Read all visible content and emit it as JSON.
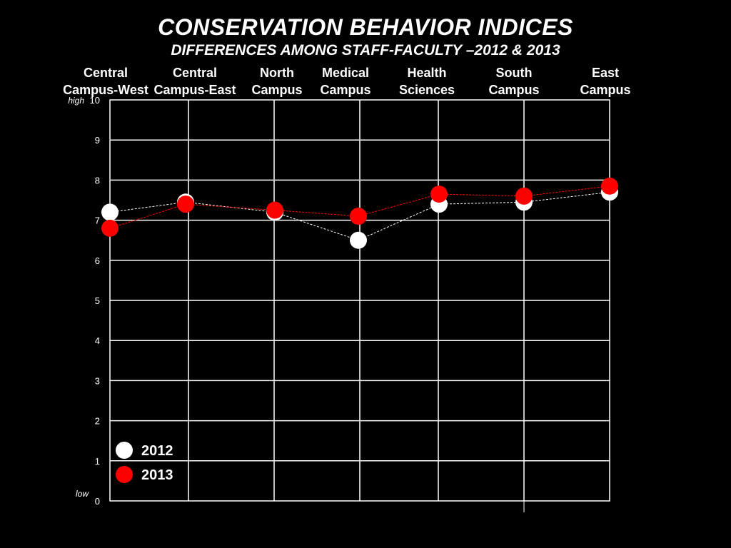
{
  "chart_data": {
    "type": "line",
    "title": "CONSERVATION BEHAVIOR INDICES",
    "subtitle": "DIFFERENCES AMONG STAFF-FACULTY –2012 & 2013",
    "categories": [
      [
        "Central",
        "Campus-West"
      ],
      [
        "Central",
        "Campus-East"
      ],
      [
        "North",
        "Campus"
      ],
      [
        "Medical",
        "Campus"
      ],
      [
        "Health",
        "Sciences"
      ],
      [
        "South",
        "Campus"
      ],
      [
        "East",
        "Campus"
      ]
    ],
    "ylim": [
      0,
      10
    ],
    "yticks": [
      "0",
      "1",
      "2",
      "3",
      "4",
      "5",
      "6",
      "7",
      "8",
      "9",
      "10"
    ],
    "ylabel_high": "high",
    "ylabel_low": "low",
    "grid": true,
    "legend_position": "bottom-left",
    "series": [
      {
        "name": "2012",
        "color": "#ffffff",
        "values": [
          7.2,
          7.45,
          7.2,
          6.5,
          7.4,
          7.45,
          7.7
        ]
      },
      {
        "name": "2013",
        "color": "#ff0000",
        "values": [
          6.8,
          7.4,
          7.25,
          7.1,
          7.65,
          7.6,
          7.85
        ]
      }
    ]
  }
}
